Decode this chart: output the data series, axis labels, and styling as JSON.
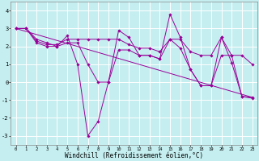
{
  "xlabel": "Windchill (Refroidissement éolien,°C)",
  "bg_color": "#c5eef0",
  "line_color": "#990099",
  "grid_color": "#ffffff",
  "xlim": [
    -0.5,
    23.5
  ],
  "ylim": [
    -3.5,
    4.5
  ],
  "yticks": [
    -3,
    -2,
    -1,
    0,
    1,
    2,
    3,
    4
  ],
  "xticks": [
    0,
    1,
    2,
    3,
    4,
    5,
    6,
    7,
    8,
    9,
    10,
    11,
    12,
    13,
    14,
    15,
    16,
    17,
    18,
    19,
    20,
    21,
    22,
    23
  ],
  "series": [
    {
      "x": [
        0,
        1,
        2,
        3,
        4,
        5,
        6,
        7,
        8,
        9,
        10,
        11,
        12,
        13,
        14,
        15,
        16,
        17,
        18,
        19,
        20,
        21,
        22,
        23
      ],
      "y": [
        3.0,
        3.0,
        2.4,
        2.2,
        2.0,
        2.6,
        1.0,
        -3.0,
        -2.2,
        0.0,
        2.9,
        2.5,
        1.5,
        1.5,
        1.3,
        3.8,
        2.5,
        0.7,
        -0.2,
        -0.2,
        2.5,
        1.1,
        -0.8,
        -0.9
      ],
      "has_markers": true
    },
    {
      "x": [
        0,
        1,
        2,
        3,
        4,
        5,
        6,
        7,
        8,
        9,
        10,
        11,
        12,
        13,
        14,
        15,
        16,
        17,
        18,
        19,
        20,
        21,
        22,
        23
      ],
      "y": [
        3.0,
        3.0,
        2.3,
        2.1,
        2.1,
        2.4,
        2.4,
        2.4,
        2.4,
        2.4,
        2.4,
        2.1,
        1.9,
        1.9,
        1.7,
        2.4,
        2.4,
        1.7,
        1.5,
        1.5,
        2.5,
        1.5,
        1.5,
        1.0
      ],
      "has_markers": true
    },
    {
      "x": [
        0,
        23
      ],
      "y": [
        3.0,
        -0.85
      ],
      "has_markers": false
    },
    {
      "x": [
        0,
        1,
        2,
        3,
        4,
        5,
        6,
        7,
        8,
        9,
        10,
        11,
        12,
        13,
        14,
        15,
        16,
        17,
        18,
        19,
        20,
        21,
        22,
        23
      ],
      "y": [
        3.0,
        3.0,
        2.2,
        2.0,
        2.0,
        2.2,
        2.2,
        1.0,
        0.0,
        0.0,
        1.8,
        1.8,
        1.5,
        1.5,
        1.3,
        2.4,
        1.9,
        0.7,
        -0.2,
        -0.2,
        1.5,
        1.5,
        -0.8,
        -0.85
      ],
      "has_markers": true
    }
  ]
}
